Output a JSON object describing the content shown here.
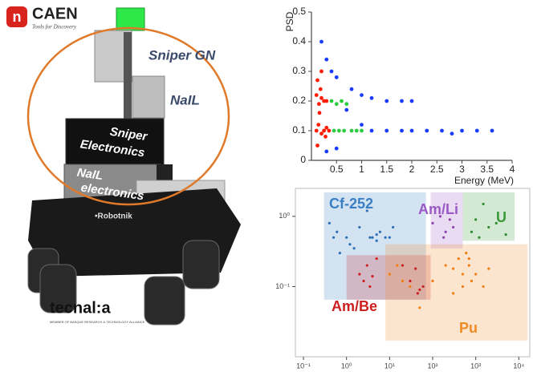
{
  "logo": {
    "name": "CAEN",
    "tagline": "Tools for Discovery"
  },
  "robot": {
    "labels": [
      "Sniper GN",
      "NaIL"
    ],
    "sniper_electronics": [
      "Sniper",
      "Electronics"
    ],
    "nail_electronics": [
      "NaIL",
      "electronics"
    ],
    "brand": "•Robotnik"
  },
  "partner": {
    "name": "tecnal:a",
    "tagline": "MEMBER OF BASQUE RESEARCH & TECHNOLOGY ALLIANCE"
  },
  "chart_data": [
    {
      "type": "scatter",
      "xlabel": "Energy (MeV)",
      "ylabel": "PSD",
      "xlim": [
        0,
        4
      ],
      "ylim": [
        0,
        0.5
      ],
      "xticks": [
        0.5,
        1,
        1.5,
        2,
        2.5,
        3,
        3.5,
        4
      ],
      "yticks": [
        0,
        0.1,
        0.2,
        0.3,
        0.4,
        0.5
      ],
      "series": [
        {
          "color": "#ff1a00",
          "x": [
            0.1,
            0.12,
            0.15,
            0.18,
            0.2,
            0.25,
            0.3,
            0.1,
            0.14,
            0.2,
            0.25,
            0.3,
            0.35,
            0.12,
            0.16,
            0.2,
            0.28
          ],
          "values": [
            0.22,
            0.27,
            0.19,
            0.24,
            0.21,
            0.2,
            0.2,
            0.1,
            0.12,
            0.09,
            0.1,
            0.11,
            0.1,
            0.05,
            0.16,
            0.3,
            0.08
          ]
        },
        {
          "color": "#2ecc40",
          "x": [
            0.4,
            0.5,
            0.6,
            0.7,
            0.45,
            0.55,
            0.65,
            0.8,
            0.9,
            1.0
          ],
          "values": [
            0.2,
            0.19,
            0.2,
            0.19,
            0.1,
            0.1,
            0.1,
            0.1,
            0.1,
            0.1
          ]
        },
        {
          "color": "#1a3cff",
          "x": [
            0.3,
            0.5,
            0.8,
            1.0,
            1.2,
            1.5,
            1.8,
            2.0,
            0.2,
            0.4,
            0.7,
            1.2,
            1.5,
            1.8,
            2.0,
            2.3,
            2.6,
            3.0,
            3.3,
            3.6,
            1.0,
            0.5,
            0.3,
            2.8
          ],
          "values": [
            0.34,
            0.28,
            0.24,
            0.22,
            0.21,
            0.2,
            0.2,
            0.2,
            0.4,
            0.3,
            0.17,
            0.1,
            0.1,
            0.1,
            0.1,
            0.1,
            0.1,
            0.1,
            0.1,
            0.1,
            0.12,
            0.04,
            0.03,
            0.09
          ]
        }
      ]
    },
    {
      "type": "scatter",
      "xscale": "log",
      "yscale": "log",
      "xlim": [
        0.065,
        18000
      ],
      "ylim": [
        0.01,
        2.5
      ],
      "xticks": [
        {
          "value": 0.1,
          "label": "10⁻¹"
        },
        {
          "value": 1,
          "label": "10⁰"
        },
        {
          "value": 10,
          "label": "10¹"
        },
        {
          "value": 100,
          "label": "10²"
        },
        {
          "value": 1000,
          "label": "10³"
        },
        {
          "value": 10000,
          "label": "10⁴"
        }
      ],
      "yticks": [
        {
          "value": 1,
          "label": "10⁰"
        },
        {
          "value": 0.1,
          "label": "10⁻¹"
        }
      ],
      "regions": [
        {
          "name": "Cf-252",
          "color": "#3a7fc4",
          "x": [
            0.3,
            70
          ],
          "y": [
            0.065,
            2.2
          ]
        },
        {
          "name": "Am/Li",
          "color": "#9b59c6",
          "x": [
            90,
            500
          ],
          "y": [
            0.35,
            2.2
          ]
        },
        {
          "name": "U",
          "color": "#3a9a3a",
          "x": [
            500,
            8000
          ],
          "y": [
            0.45,
            2.2
          ]
        },
        {
          "name": "Am/Be",
          "color": "#cc1f1f",
          "x": [
            1,
            90
          ],
          "y": [
            0.065,
            0.28
          ]
        },
        {
          "name": "Pu",
          "color": "#f08a24",
          "x": [
            8,
            16000
          ],
          "y": [
            0.017,
            0.4
          ]
        }
      ],
      "series": [
        {
          "color": "#2f6fb5",
          "x": [
            0.4,
            0.5,
            0.6,
            1,
            1.2,
            2,
            3,
            4,
            5,
            6,
            8,
            10,
            0.7,
            1.5,
            3.5,
            12,
            5
          ],
          "values": [
            0.8,
            0.5,
            0.6,
            0.5,
            0.4,
            0.7,
            1.2,
            0.5,
            0.55,
            0.6,
            0.5,
            0.5,
            0.3,
            0.35,
            0.5,
            0.7,
            0.45
          ]
        },
        {
          "color": "#8e44ad",
          "x": [
            100,
            150,
            200,
            250,
            300,
            180
          ],
          "values": [
            0.8,
            1.0,
            0.6,
            0.9,
            0.7,
            0.5
          ]
        },
        {
          "color": "#2e8b2e",
          "x": [
            800,
            1000,
            1500,
            2000,
            3000,
            5000,
            1200
          ],
          "values": [
            0.6,
            0.9,
            1.5,
            0.7,
            0.8,
            0.55,
            0.5
          ]
        },
        {
          "color": "#cc1f1f",
          "x": [
            2,
            2.5,
            3,
            4,
            5,
            20,
            30,
            40,
            50,
            60,
            3.5,
            45
          ],
          "values": [
            0.15,
            0.12,
            0.2,
            0.14,
            0.25,
            0.2,
            0.12,
            0.18,
            0.09,
            0.1,
            0.1,
            0.08
          ]
        },
        {
          "color": "#f07d10",
          "x": [
            10,
            15,
            20,
            30,
            200,
            300,
            400,
            500,
            600,
            700,
            800,
            1000,
            1500,
            2000,
            300,
            500,
            700,
            100,
            50
          ],
          "values": [
            0.15,
            0.2,
            0.12,
            0.1,
            0.2,
            0.18,
            0.25,
            0.15,
            0.3,
            0.2,
            0.12,
            0.15,
            0.1,
            0.18,
            0.08,
            0.1,
            0.25,
            0.12,
            0.05
          ]
        }
      ]
    }
  ]
}
